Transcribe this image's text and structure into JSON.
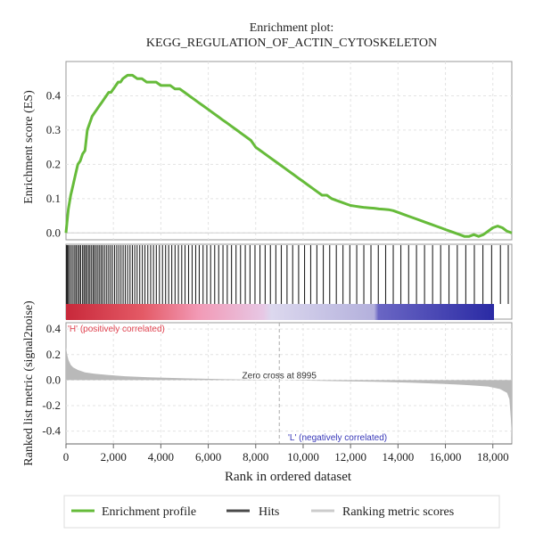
{
  "figure": {
    "title_line1": "Enrichment plot:",
    "title_line2": "KEGG_REGULATION_OF_ACTIN_CYTOSKELETON"
  },
  "chart_data": {
    "type": "line",
    "title": "Enrichment plot: KEGG_REGULATION_OF_ACTIN_CYTOSKELETON",
    "xlabel": "Rank in ordered dataset",
    "xlim": [
      0,
      18800
    ],
    "x_ticks": [
      0,
      2000,
      4000,
      6000,
      8000,
      10000,
      12000,
      14000,
      16000,
      18000
    ],
    "x_tick_labels": [
      "0",
      "2,000",
      "4,000",
      "6,000",
      "8,000",
      "10,000",
      "12,000",
      "14,000",
      "16,000",
      "18,000"
    ],
    "enrichment": {
      "ylabel": "Enrichment score (ES)",
      "ylim": [
        -0.02,
        0.5
      ],
      "y_ticks": [
        0.0,
        0.1,
        0.2,
        0.3,
        0.4
      ],
      "y_tick_labels": [
        "0.0",
        "0.1",
        "0.2",
        "0.3",
        "0.4"
      ],
      "color": "#66bb3a",
      "series": [
        {
          "x": [
            0,
            40,
            100,
            200,
            300,
            400,
            500,
            600,
            700,
            800,
            900,
            1000,
            1100,
            1200,
            1300,
            1400,
            1500,
            1600,
            1700,
            1800,
            1900,
            2000,
            2100,
            2200,
            2300,
            2400,
            2600,
            2800,
            3000,
            3200,
            3400,
            3600,
            3800,
            4000,
            4200,
            4400,
            4600,
            4800,
            5000,
            5200,
            5400,
            5600,
            5800,
            6000,
            6200,
            6400,
            6600,
            6800,
            7000,
            7200,
            7400,
            7600,
            7800,
            8000,
            8200,
            8400,
            8600,
            8800,
            9000,
            9200,
            9400,
            9600,
            9800,
            10000,
            10200,
            10400,
            10600,
            10800,
            11000,
            11200,
            11400,
            11600,
            11800,
            12000,
            12200,
            12400,
            12600,
            12800,
            13000,
            13200,
            13400,
            13600,
            13800,
            14000,
            14200,
            14400,
            14600,
            14800,
            15000,
            15200,
            15400,
            15600,
            15800,
            16000,
            16200,
            16400,
            16600,
            16800,
            17000,
            17200,
            17400,
            17600,
            17800,
            18000,
            18200,
            18400,
            18600,
            18800
          ],
          "values": [
            0.0,
            0.03,
            0.07,
            0.11,
            0.14,
            0.17,
            0.2,
            0.21,
            0.23,
            0.24,
            0.3,
            0.32,
            0.34,
            0.35,
            0.36,
            0.37,
            0.38,
            0.39,
            0.4,
            0.41,
            0.41,
            0.42,
            0.43,
            0.44,
            0.44,
            0.45,
            0.46,
            0.46,
            0.45,
            0.45,
            0.44,
            0.44,
            0.44,
            0.43,
            0.43,
            0.43,
            0.42,
            0.42,
            0.41,
            0.4,
            0.39,
            0.38,
            0.37,
            0.36,
            0.35,
            0.34,
            0.33,
            0.32,
            0.31,
            0.3,
            0.29,
            0.28,
            0.27,
            0.25,
            0.24,
            0.23,
            0.22,
            0.21,
            0.2,
            0.19,
            0.18,
            0.17,
            0.16,
            0.15,
            0.14,
            0.13,
            0.12,
            0.11,
            0.11,
            0.1,
            0.095,
            0.09,
            0.085,
            0.08,
            0.078,
            0.076,
            0.074,
            0.073,
            0.072,
            0.07,
            0.069,
            0.068,
            0.065,
            0.06,
            0.055,
            0.05,
            0.045,
            0.04,
            0.035,
            0.03,
            0.025,
            0.02,
            0.015,
            0.01,
            0.005,
            0.0,
            -0.005,
            -0.01,
            -0.01,
            -0.005,
            -0.01,
            -0.005,
            0.005,
            0.015,
            0.02,
            0.015,
            0.005,
            0.0
          ]
        }
      ]
    },
    "hits": {
      "color": "#222222",
      "positions": [
        20,
        60,
        100,
        160,
        230,
        300,
        370,
        430,
        500,
        560,
        620,
        700,
        760,
        820,
        880,
        950,
        1010,
        1080,
        1150,
        1210,
        1280,
        1350,
        1420,
        1490,
        1560,
        1640,
        1720,
        1800,
        1880,
        1960,
        2050,
        2140,
        2230,
        2320,
        2410,
        2500,
        2600,
        2700,
        2800,
        2900,
        3000,
        3110,
        3220,
        3330,
        3450,
        3570,
        3690,
        3810,
        3940,
        4070,
        4200,
        4330,
        4460,
        4600,
        4740,
        4880,
        5020,
        5170,
        5320,
        5470,
        5620,
        5780,
        5940,
        6100,
        6270,
        6440,
        6620,
        6800,
        6980,
        7170,
        7360,
        7560,
        7760,
        7970,
        8180,
        8400,
        8620,
        8850,
        9080,
        9320,
        9560,
        9810,
        10060,
        10320,
        10580,
        10850,
        11120,
        11400,
        11680,
        11970,
        12260,
        12560,
        12860,
        13170,
        13480,
        13800,
        14120,
        14450,
        14780,
        15120,
        15460,
        15800,
        16150,
        16500,
        16860,
        17220,
        17580,
        17950,
        18320,
        18650
      ]
    },
    "ranking": {
      "ylabel": "Ranked list metric (signal2noise)",
      "ylim": [
        -0.5,
        0.45
      ],
      "y_ticks": [
        0.4,
        0.2,
        0.0,
        -0.2,
        -0.4
      ],
      "y_tick_labels": [
        "0.4",
        "0.2",
        "0.0",
        "-0.2",
        "-0.4"
      ],
      "color": "#b9b9b9",
      "x": [
        0,
        50,
        100,
        200,
        300,
        500,
        800,
        1200,
        1800,
        2500,
        3500,
        5000,
        6500,
        8000,
        8995,
        10000,
        11500,
        13000,
        14500,
        16000,
        17000,
        17800,
        18300,
        18600,
        18700,
        18760,
        18800
      ],
      "values": [
        0.26,
        0.2,
        0.16,
        0.12,
        0.1,
        0.08,
        0.06,
        0.05,
        0.04,
        0.03,
        0.022,
        0.014,
        0.008,
        0.003,
        0.0,
        -0.003,
        -0.008,
        -0.013,
        -0.02,
        -0.03,
        -0.04,
        -0.05,
        -0.07,
        -0.1,
        -0.15,
        -0.3,
        -0.45
      ],
      "zero_cross": 8995,
      "zero_cross_label": "Zero cross at 8995",
      "pos_label": "'H' (positively correlated)",
      "neg_label": "'L' (negatively correlated)",
      "pos_color": "#e0424f",
      "neg_color": "#3636b8"
    },
    "legend": {
      "placement": "bottom",
      "items": [
        {
          "label": "Enrichment profile",
          "color": "#66bb3a",
          "style": "thick"
        },
        {
          "label": "Hits",
          "color": "#4a4a4a",
          "style": "thick"
        },
        {
          "label": "Ranking metric scores",
          "color": "#cccccc",
          "style": "thick"
        }
      ]
    }
  }
}
